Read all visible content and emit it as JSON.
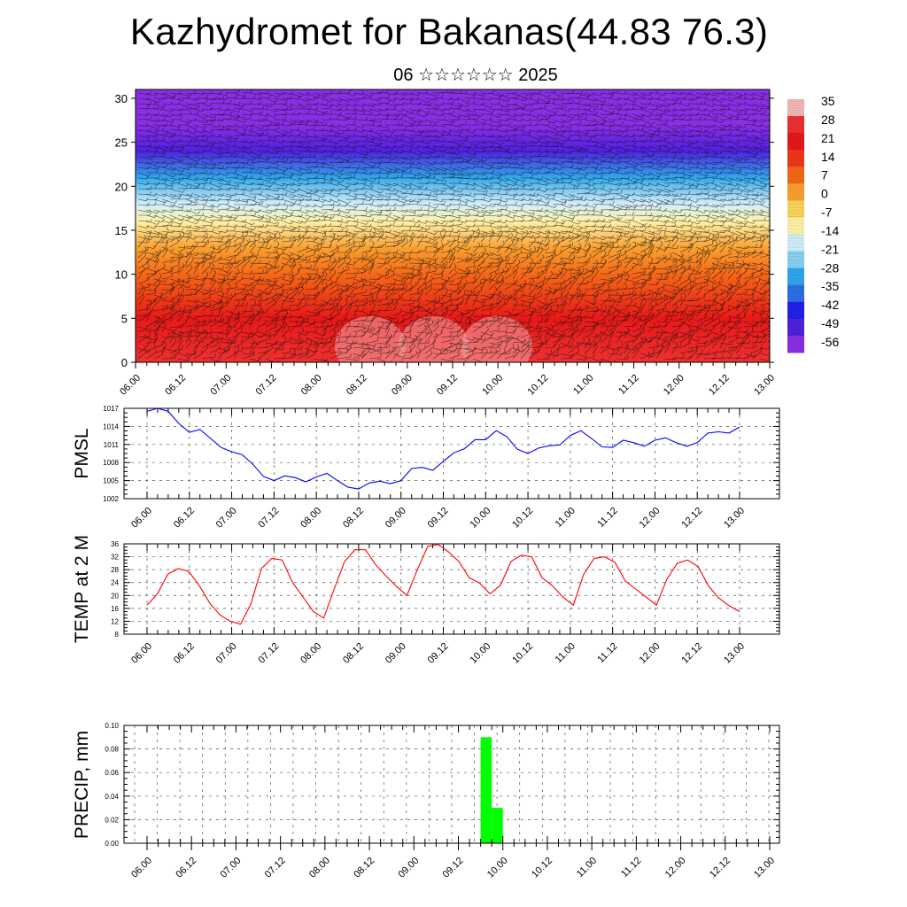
{
  "title": "Kazhydromet for Bakanas(44.83 76.3)",
  "subtitle": "06 ☆☆☆☆☆☆ 2025",
  "x_tick_labels": [
    "06.00",
    "06.12",
    "07.00",
    "07.12",
    "08.00",
    "08.12",
    "09.00",
    "09.12",
    "10.00",
    "10.12",
    "11.00",
    "11.12",
    "12.00",
    "12.12",
    "13.00"
  ],
  "chart_data": [
    {
      "type": "heatmap",
      "name": "Temperature cross-section with wind barbs",
      "y_ticks": [
        0,
        5,
        10,
        15,
        20,
        25,
        30
      ],
      "ylim": [
        0,
        31
      ],
      "colorbar_labels": [
        "35",
        "28",
        "21",
        "14",
        "7",
        "0",
        "-7",
        "-14",
        "-21",
        "-28",
        "-35",
        "-42",
        "-49",
        "-56"
      ],
      "colorbar_colors": [
        "#f2b8b8",
        "#ee3030",
        "#e81818",
        "#ee3818",
        "#f56818",
        "#f9a030",
        "#fad55a",
        "#fef2a8",
        "#d2eefa",
        "#88d2f4",
        "#2ea8ec",
        "#2e6ee6",
        "#2020ee",
        "#5020e0",
        "#8a2ee6"
      ],
      "profile": [
        {
          "level": 0,
          "value": 30
        },
        {
          "level": 5,
          "value": 22
        },
        {
          "level": 10,
          "value": 12
        },
        {
          "level": 13,
          "value": 4
        },
        {
          "level": 16,
          "value": -8
        },
        {
          "level": 18,
          "value": -18
        },
        {
          "level": 21,
          "value": -32
        },
        {
          "level": 24,
          "value": -49
        },
        {
          "level": 27,
          "value": -54
        },
        {
          "level": 31,
          "value": -58
        }
      ]
    },
    {
      "type": "line",
      "ylabel": "PMSL",
      "ylim": [
        1002,
        1017
      ],
      "y_ticks": [
        1002,
        1005,
        1008,
        1011,
        1014,
        1017
      ],
      "color": "#0000ff",
      "values": [
        1016.5,
        1017,
        1016.5,
        1014.5,
        1013,
        1013.5,
        1012,
        1010.5,
        1009.8,
        1009.3,
        1007.7,
        1005.7,
        1005.0,
        1005.8,
        1005.5,
        1004.8,
        1005.6,
        1006.2,
        1005.0,
        1003.9,
        1003.6,
        1004.6,
        1004.9,
        1004.5,
        1005.0,
        1007.0,
        1007.2,
        1006.7,
        1008.2,
        1009.6,
        1010.3,
        1011.8,
        1011.8,
        1013.3,
        1012.3,
        1010.2,
        1009.5,
        1010.4,
        1010.8,
        1010.9,
        1012.5,
        1013.3,
        1012.0,
        1010.6,
        1010.5,
        1011.7,
        1011.3,
        1010.7,
        1011.7,
        1012.1,
        1011.3,
        1010.7,
        1011.3,
        1012.9,
        1013.1,
        1012.9,
        1013.9
      ]
    },
    {
      "type": "line",
      "ylabel": "TEMP at 2 M",
      "ylim": [
        8,
        36
      ],
      "y_ticks": [
        8,
        12,
        16,
        20,
        24,
        28,
        32,
        36
      ],
      "color": "#ff0000",
      "values": [
        17.0,
        20.5,
        26.6,
        28.3,
        27.5,
        23.2,
        17.8,
        14.0,
        12.0,
        11.1,
        17.5,
        28.3,
        31.5,
        31.0,
        24.0,
        19.5,
        15.0,
        13.0,
        22.0,
        30.5,
        34.2,
        34.2,
        29.5,
        26.0,
        22.8,
        20.0,
        28.0,
        35.2,
        35.8,
        33.5,
        30.5,
        25.5,
        23.8,
        20.5,
        23.2,
        30.5,
        32.5,
        32.0,
        25.5,
        23.0,
        19.5,
        17.0,
        26.5,
        31.5,
        32.0,
        30.3,
        24.5,
        22.0,
        19.5,
        17.0,
        25.0,
        30.0,
        31.0,
        29.0,
        23.0,
        19.2,
        16.8,
        15.0
      ]
    },
    {
      "type": "bar",
      "ylabel": "PRECIP, mm",
      "ylim": [
        0,
        0.1
      ],
      "y_ticks": [
        0.0,
        0.02,
        0.04,
        0.06,
        0.08,
        0.1
      ],
      "y_tick_labels": [
        "0.00",
        "0.02",
        "0.04",
        "0.06",
        "0.08",
        "0.10"
      ],
      "color": "#00ff00",
      "bars": [
        {
          "x": 9.75,
          "width": 0.125,
          "value": 0.09
        },
        {
          "x": 9.875,
          "width": 0.125,
          "value": 0.03
        }
      ]
    }
  ]
}
